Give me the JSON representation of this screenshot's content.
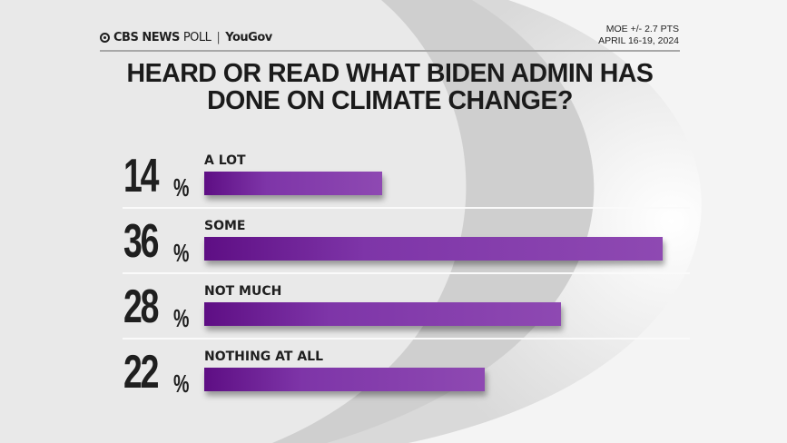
{
  "header": {
    "brand": "CBS NEWS",
    "poll": "POLL",
    "partner": "YouGov",
    "moe": "MOE +/- 2.7 PTS",
    "dates": "APRIL 16-19, 2024"
  },
  "chart_data": {
    "type": "bar",
    "orientation": "horizontal",
    "title": "HEARD OR READ WHAT BIDEN ADMIN HAS DONE ON CLIMATE CHANGE?",
    "categories": [
      "A LOT",
      "SOME",
      "NOT MUCH",
      "NOTHING AT ALL"
    ],
    "values": [
      14,
      36,
      28,
      22
    ],
    "value_labels": [
      "14",
      "36",
      "28",
      "22"
    ],
    "unit": "%",
    "bar_color": "#8e49b2",
    "xlim": [
      0,
      36
    ]
  }
}
